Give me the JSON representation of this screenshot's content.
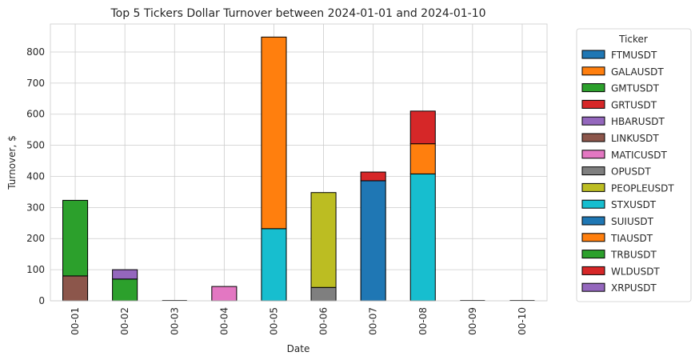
{
  "chart_data": {
    "type": "bar",
    "stacked": true,
    "title": "Top 5 Tickers Dollar Turnover between 2024-01-01 and 2024-01-10",
    "xlabel": "Date",
    "ylabel": "Turnover, $",
    "ylim": [
      0,
      890
    ],
    "yticks": [
      0,
      100,
      200,
      300,
      400,
      500,
      600,
      700,
      800
    ],
    "grid": true,
    "legend_title": "Ticker",
    "legend_position": "outside-right",
    "categories": [
      "00-01",
      "00-02",
      "00-03",
      "00-04",
      "00-05",
      "00-06",
      "00-07",
      "00-08",
      "00-09",
      "00-10"
    ],
    "series": [
      {
        "name": "FTMUSDT",
        "color": "#1f77b4",
        "values": [
          0,
          0,
          0,
          0,
          0,
          0,
          0,
          0,
          0,
          0
        ]
      },
      {
        "name": "GALAUSDT",
        "color": "#ff7f0e",
        "values": [
          0,
          0,
          0,
          0,
          0,
          0,
          0,
          0,
          0,
          0
        ]
      },
      {
        "name": "GMTUSDT",
        "color": "#2ca02c",
        "values": [
          0,
          70,
          0,
          0,
          0,
          0,
          0,
          0,
          0,
          0
        ]
      },
      {
        "name": "GRTUSDT",
        "color": "#d62728",
        "values": [
          0,
          0,
          0,
          0,
          0,
          0,
          0,
          0,
          0,
          0
        ]
      },
      {
        "name": "HBARUSDT",
        "color": "#9467bd",
        "values": [
          0,
          30,
          0,
          0,
          0,
          0,
          0,
          0,
          0,
          0
        ]
      },
      {
        "name": "LINKUSDT",
        "color": "#8c564b",
        "values": [
          80,
          0,
          0,
          0,
          0,
          0,
          0,
          0,
          0,
          0
        ]
      },
      {
        "name": "MATICUSDT",
        "color": "#e377c2",
        "values": [
          0,
          0,
          0,
          46,
          0,
          0,
          0,
          0,
          0,
          0
        ]
      },
      {
        "name": "OPUSDT",
        "color": "#7f7f7f",
        "values": [
          0,
          0,
          0,
          0,
          0,
          43,
          0,
          0,
          0,
          0
        ]
      },
      {
        "name": "PEOPLEUSDT",
        "color": "#bcbd22",
        "values": [
          0,
          0,
          0,
          0,
          0,
          305,
          0,
          0,
          0,
          0
        ]
      },
      {
        "name": "STXUSDT",
        "color": "#17becf",
        "values": [
          0,
          0,
          0,
          0,
          232,
          0,
          0,
          408,
          0,
          0
        ]
      },
      {
        "name": "SUIUSDT",
        "color": "#1f77b4",
        "values": [
          0,
          0,
          0,
          0,
          0,
          0,
          386,
          0,
          0,
          0
        ]
      },
      {
        "name": "TIAUSDT",
        "color": "#ff7f0e",
        "values": [
          0,
          0,
          0,
          0,
          616,
          0,
          0,
          97,
          0,
          0
        ]
      },
      {
        "name": "TRBUSDT",
        "color": "#2ca02c",
        "values": [
          243,
          0,
          0,
          0,
          0,
          0,
          0,
          0,
          0,
          0
        ]
      },
      {
        "name": "WLDUSDT",
        "color": "#d62728",
        "values": [
          0,
          0,
          0,
          0,
          0,
          0,
          28,
          105,
          0,
          0
        ]
      },
      {
        "name": "XRPUSDT",
        "color": "#9467bd",
        "values": [
          0,
          0,
          0,
          0,
          0,
          0,
          0,
          0,
          0,
          0
        ]
      }
    ],
    "near_zero_bars": [
      "00-03",
      "00-09",
      "00-10"
    ]
  }
}
